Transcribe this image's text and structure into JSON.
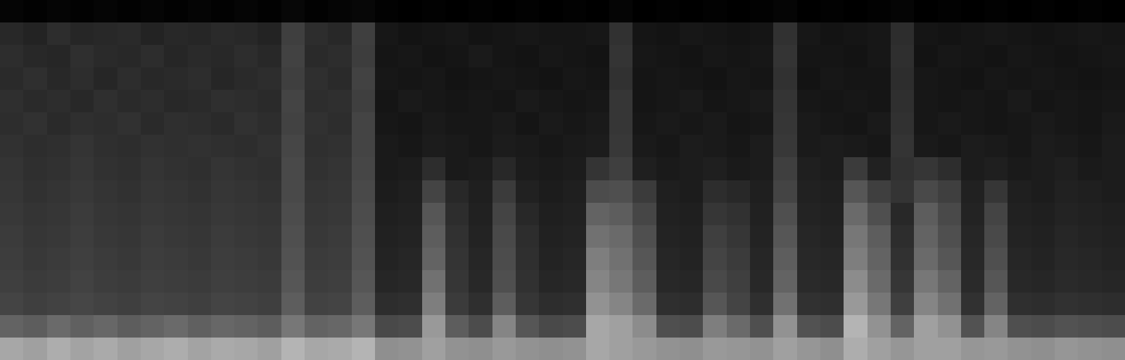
{
  "chart_data": {
    "type": "heatmap",
    "tick_labels": false,
    "grid": false,
    "xlim": [
      -0.5,
      47.5
    ],
    "ylim": [
      -0.5,
      15.5
    ],
    "cells": [
      [
        0.62,
        0.6,
        0.64,
        0.61,
        0.63,
        0.6,
        0.62,
        0.64,
        0.61,
        0.63,
        0.62,
        0.6,
        0.66,
        0.62,
        0.63,
        0.66,
        0.55,
        0.56,
        0.6,
        0.56,
        0.55,
        0.58,
        0.56,
        0.55,
        0.56,
        0.62,
        0.6,
        0.58,
        0.56,
        0.55,
        0.58,
        0.57,
        0.56,
        0.6,
        0.57,
        0.55,
        0.64,
        0.6,
        0.57,
        0.6,
        0.6,
        0.57,
        0.58,
        0.56,
        0.55,
        0.57,
        0.56,
        0.55
      ],
      [
        0.42,
        0.4,
        0.44,
        0.41,
        0.43,
        0.4,
        0.42,
        0.44,
        0.41,
        0.43,
        0.42,
        0.4,
        0.48,
        0.42,
        0.43,
        0.48,
        0.34,
        0.35,
        0.58,
        0.4,
        0.35,
        0.52,
        0.38,
        0.34,
        0.35,
        0.62,
        0.6,
        0.54,
        0.36,
        0.35,
        0.5,
        0.44,
        0.36,
        0.56,
        0.37,
        0.35,
        0.66,
        0.56,
        0.42,
        0.6,
        0.56,
        0.37,
        0.52,
        0.36,
        0.35,
        0.37,
        0.36,
        0.35
      ],
      [
        0.32,
        0.3,
        0.31,
        0.33,
        0.31,
        0.3,
        0.32,
        0.31,
        0.3,
        0.32,
        0.31,
        0.3,
        0.4,
        0.31,
        0.32,
        0.4,
        0.22,
        0.23,
        0.5,
        0.28,
        0.23,
        0.4,
        0.26,
        0.22,
        0.23,
        0.56,
        0.52,
        0.44,
        0.23,
        0.22,
        0.38,
        0.32,
        0.23,
        0.46,
        0.24,
        0.23,
        0.58,
        0.48,
        0.3,
        0.52,
        0.46,
        0.24,
        0.42,
        0.23,
        0.22,
        0.24,
        0.23,
        0.22
      ],
      [
        0.3,
        0.28,
        0.29,
        0.31,
        0.29,
        0.28,
        0.3,
        0.29,
        0.28,
        0.3,
        0.29,
        0.28,
        0.38,
        0.29,
        0.3,
        0.38,
        0.19,
        0.2,
        0.46,
        0.26,
        0.2,
        0.36,
        0.24,
        0.19,
        0.2,
        0.52,
        0.48,
        0.4,
        0.2,
        0.19,
        0.34,
        0.3,
        0.2,
        0.42,
        0.21,
        0.2,
        0.54,
        0.44,
        0.26,
        0.48,
        0.42,
        0.21,
        0.38,
        0.2,
        0.19,
        0.21,
        0.2,
        0.19
      ],
      [
        0.29,
        0.27,
        0.28,
        0.3,
        0.28,
        0.27,
        0.29,
        0.28,
        0.27,
        0.29,
        0.28,
        0.27,
        0.37,
        0.28,
        0.29,
        0.37,
        0.18,
        0.19,
        0.42,
        0.25,
        0.19,
        0.35,
        0.23,
        0.18,
        0.19,
        0.5,
        0.46,
        0.38,
        0.19,
        0.18,
        0.32,
        0.28,
        0.19,
        0.4,
        0.2,
        0.19,
        0.5,
        0.42,
        0.24,
        0.44,
        0.38,
        0.2,
        0.36,
        0.19,
        0.18,
        0.2,
        0.19,
        0.18
      ],
      [
        0.28,
        0.26,
        0.27,
        0.29,
        0.27,
        0.26,
        0.28,
        0.27,
        0.26,
        0.28,
        0.27,
        0.26,
        0.36,
        0.27,
        0.28,
        0.36,
        0.17,
        0.18,
        0.4,
        0.24,
        0.18,
        0.34,
        0.22,
        0.17,
        0.18,
        0.46,
        0.44,
        0.36,
        0.18,
        0.17,
        0.3,
        0.26,
        0.18,
        0.38,
        0.19,
        0.18,
        0.48,
        0.4,
        0.22,
        0.42,
        0.36,
        0.19,
        0.34,
        0.18,
        0.17,
        0.19,
        0.18,
        0.17
      ],
      [
        0.27,
        0.25,
        0.26,
        0.28,
        0.26,
        0.25,
        0.27,
        0.26,
        0.25,
        0.27,
        0.26,
        0.25,
        0.35,
        0.26,
        0.27,
        0.35,
        0.16,
        0.17,
        0.38,
        0.22,
        0.17,
        0.32,
        0.2,
        0.16,
        0.17,
        0.42,
        0.4,
        0.33,
        0.17,
        0.16,
        0.26,
        0.24,
        0.17,
        0.36,
        0.18,
        0.17,
        0.44,
        0.36,
        0.2,
        0.4,
        0.34,
        0.18,
        0.32,
        0.17,
        0.16,
        0.18,
        0.17,
        0.16
      ],
      [
        0.26,
        0.24,
        0.25,
        0.27,
        0.25,
        0.24,
        0.26,
        0.25,
        0.24,
        0.26,
        0.25,
        0.24,
        0.34,
        0.25,
        0.26,
        0.34,
        0.15,
        0.16,
        0.32,
        0.2,
        0.16,
        0.28,
        0.17,
        0.15,
        0.16,
        0.35,
        0.36,
        0.28,
        0.16,
        0.15,
        0.22,
        0.2,
        0.16,
        0.32,
        0.17,
        0.16,
        0.38,
        0.3,
        0.25,
        0.34,
        0.3,
        0.17,
        0.26,
        0.16,
        0.15,
        0.17,
        0.16,
        0.15
      ],
      [
        0.25,
        0.23,
        0.24,
        0.26,
        0.24,
        0.23,
        0.25,
        0.24,
        0.23,
        0.25,
        0.24,
        0.23,
        0.34,
        0.24,
        0.25,
        0.33,
        0.14,
        0.15,
        0.22,
        0.14,
        0.15,
        0.2,
        0.15,
        0.14,
        0.15,
        0.25,
        0.3,
        0.16,
        0.14,
        0.15,
        0.16,
        0.14,
        0.15,
        0.3,
        0.16,
        0.15,
        0.28,
        0.17,
        0.24,
        0.26,
        0.22,
        0.15,
        0.16,
        0.14,
        0.15,
        0.16,
        0.14,
        0.15
      ],
      [
        0.24,
        0.22,
        0.23,
        0.25,
        0.23,
        0.22,
        0.24,
        0.23,
        0.24,
        0.23,
        0.22,
        0.24,
        0.33,
        0.23,
        0.24,
        0.32,
        0.14,
        0.13,
        0.15,
        0.14,
        0.13,
        0.15,
        0.14,
        0.13,
        0.14,
        0.15,
        0.27,
        0.14,
        0.13,
        0.15,
        0.14,
        0.13,
        0.15,
        0.27,
        0.14,
        0.15,
        0.14,
        0.13,
        0.25,
        0.14,
        0.13,
        0.15,
        0.14,
        0.13,
        0.15,
        0.14,
        0.13,
        0.15
      ],
      [
        0.22,
        0.24,
        0.21,
        0.23,
        0.22,
        0.24,
        0.21,
        0.23,
        0.22,
        0.21,
        0.24,
        0.22,
        0.31,
        0.24,
        0.22,
        0.32,
        0.13,
        0.12,
        0.14,
        0.13,
        0.13,
        0.14,
        0.12,
        0.14,
        0.13,
        0.14,
        0.26,
        0.13,
        0.14,
        0.13,
        0.14,
        0.12,
        0.13,
        0.26,
        0.14,
        0.13,
        0.12,
        0.14,
        0.24,
        0.13,
        0.14,
        0.13,
        0.12,
        0.13,
        0.14,
        0.13,
        0.12,
        0.14
      ],
      [
        0.23,
        0.21,
        0.22,
        0.2,
        0.23,
        0.21,
        0.22,
        0.2,
        0.21,
        0.23,
        0.22,
        0.21,
        0.32,
        0.22,
        0.23,
        0.3,
        0.12,
        0.14,
        0.13,
        0.12,
        0.13,
        0.12,
        0.14,
        0.13,
        0.12,
        0.13,
        0.26,
        0.12,
        0.13,
        0.14,
        0.12,
        0.13,
        0.14,
        0.25,
        0.13,
        0.12,
        0.13,
        0.12,
        0.23,
        0.13,
        0.12,
        0.13,
        0.12,
        0.14,
        0.12,
        0.13,
        0.12,
        0.13
      ],
      [
        0.21,
        0.23,
        0.2,
        0.22,
        0.19,
        0.22,
        0.2,
        0.21,
        0.22,
        0.19,
        0.21,
        0.22,
        0.3,
        0.23,
        0.21,
        0.31,
        0.13,
        0.12,
        0.13,
        0.11,
        0.12,
        0.13,
        0.12,
        0.11,
        0.13,
        0.12,
        0.24,
        0.12,
        0.13,
        0.12,
        0.11,
        0.13,
        0.12,
        0.24,
        0.11,
        0.13,
        0.12,
        0.12,
        0.22,
        0.13,
        0.12,
        0.11,
        0.13,
        0.12,
        0.13,
        0.12,
        0.11,
        0.12
      ],
      [
        0.22,
        0.2,
        0.19,
        0.23,
        0.21,
        0.2,
        0.22,
        0.19,
        0.21,
        0.2,
        0.22,
        0.2,
        0.31,
        0.21,
        0.22,
        0.29,
        0.12,
        0.13,
        0.11,
        0.12,
        0.14,
        0.12,
        0.11,
        0.13,
        0.12,
        0.11,
        0.25,
        0.13,
        0.12,
        0.11,
        0.13,
        0.12,
        0.13,
        0.25,
        0.12,
        0.12,
        0.11,
        0.13,
        0.23,
        0.11,
        0.13,
        0.12,
        0.11,
        0.13,
        0.12,
        0.11,
        0.12,
        0.13
      ],
      [
        0.2,
        0.18,
        0.22,
        0.19,
        0.2,
        0.21,
        0.18,
        0.2,
        0.19,
        0.21,
        0.2,
        0.18,
        0.3,
        0.22,
        0.2,
        0.3,
        0.13,
        0.11,
        0.12,
        0.13,
        0.11,
        0.12,
        0.13,
        0.12,
        0.12,
        0.13,
        0.24,
        0.12,
        0.11,
        0.13,
        0.12,
        0.11,
        0.12,
        0.24,
        0.13,
        0.11,
        0.12,
        0.13,
        0.22,
        0.12,
        0.11,
        0.12,
        0.13,
        0.12,
        0.11,
        0.12,
        0.13,
        0.12
      ],
      [
        0.05,
        0.04,
        0.05,
        0.04,
        0.05,
        0.04,
        0.05,
        0.04,
        0.05,
        0.04,
        0.05,
        0.04,
        0.06,
        0.04,
        0.05,
        0.06,
        0.04,
        0.03,
        0.04,
        0.03,
        0.04,
        0.03,
        0.04,
        0.03,
        0.04,
        0.03,
        0.05,
        0.03,
        0.04,
        0.03,
        0.04,
        0.03,
        0.04,
        0.05,
        0.03,
        0.04,
        0.03,
        0.04,
        0.05,
        0.03,
        0.04,
        0.03,
        0.04,
        0.03,
        0.04,
        0.03,
        0.04,
        0.03
      ]
    ]
  }
}
